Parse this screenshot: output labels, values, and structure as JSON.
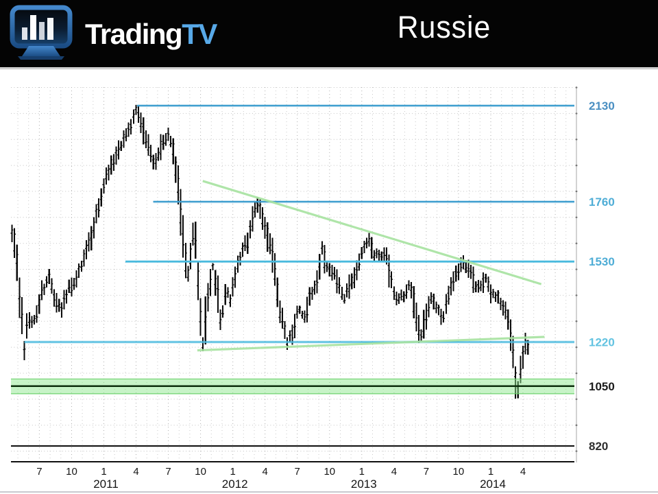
{
  "header": {
    "brand": {
      "part1": "Trading",
      "part2": "TV",
      "icon": "tv-bar-chart-icon",
      "frame_color": "#2d6db2",
      "bars_color": "#f2f2f2",
      "tv_text_color": "#58a9e8",
      "trading_text_color": "#ffffff",
      "bg_color": "#040404"
    },
    "title": "Russie"
  },
  "chart_data": {
    "type": "ohlc-bar",
    "title": "Russie",
    "bar_color": "#0a0a0a",
    "grid_color": "#c3c3c3",
    "x_axis": {
      "unit": "months (t=0 is Jan 2011)",
      "grid": "monthly-dotted",
      "ticks": [
        {
          "t": -6,
          "label": "7"
        },
        {
          "t": -3,
          "label": "10"
        },
        {
          "t": 0,
          "label": "1"
        },
        {
          "t": 3,
          "label": "4"
        },
        {
          "t": 6,
          "label": "7"
        },
        {
          "t": 9,
          "label": "10"
        },
        {
          "t": 12,
          "label": "1"
        },
        {
          "t": 15,
          "label": "4"
        },
        {
          "t": 18,
          "label": "7"
        },
        {
          "t": 21,
          "label": "10"
        },
        {
          "t": 24,
          "label": "1"
        },
        {
          "t": 27,
          "label": "4"
        },
        {
          "t": 30,
          "label": "7"
        },
        {
          "t": 33,
          "label": "10"
        },
        {
          "t": 36,
          "label": "1"
        },
        {
          "t": 39,
          "label": "4"
        }
      ],
      "years": [
        {
          "t": 0,
          "label": "2011"
        },
        {
          "t": 12,
          "label": "2012"
        },
        {
          "t": 24,
          "label": "2013"
        },
        {
          "t": 36,
          "label": "2014"
        }
      ]
    },
    "y_axis": {
      "grid_min": 800,
      "grid_max": 2200,
      "grid_step": 100,
      "labels": [
        {
          "price": 2130,
          "color": "#4a8fc2"
        },
        {
          "price": 1760,
          "color": "#4fadd6"
        },
        {
          "price": 1530,
          "color": "#4fadd6"
        },
        {
          "price": 1220,
          "color": "#63c3e1"
        },
        {
          "price": 1050,
          "color": "#1b1b1b"
        },
        {
          "price": 820,
          "color": "#2e2e2e"
        }
      ]
    },
    "levels": [
      {
        "price": 2130,
        "from_t": 3.1,
        "color": "#3e9ecf"
      },
      {
        "price": 1760,
        "from_t": 4.6,
        "color": "#3e9ecf"
      },
      {
        "price": 1530,
        "from_t": 2.0,
        "color": "#49bade"
      },
      {
        "price": 1220,
        "from_t": -7.4,
        "color": "#49bade"
      }
    ],
    "trendlines": [
      {
        "t1": 9.2,
        "p1": 1840,
        "t2": 40.7,
        "p2": 1443,
        "color": "#a7e3a0"
      },
      {
        "t1": 8.7,
        "p1": 1188,
        "t2": 41.0,
        "p2": 1240,
        "color": "#a7e3a0"
      }
    ],
    "zone": {
      "p_top": 1078,
      "p_bottom": 1021,
      "line_price": 1050,
      "fill": "#8fe88f",
      "edge": "#63cf63",
      "line_color": "#0d2e0d"
    },
    "baseline_price": 820,
    "series": {
      "name": "Russie index, weekly bars",
      "keypoints": [
        [
          -8.6,
          1650
        ],
        [
          -8.3,
          1600
        ],
        [
          -7.9,
          1430
        ],
        [
          -7.6,
          1290
        ],
        [
          -7.4,
          1205
        ],
        [
          -7.0,
          1320
        ],
        [
          -6.5,
          1300
        ],
        [
          -5.8,
          1400
        ],
        [
          -5.1,
          1480
        ],
        [
          -4.6,
          1390
        ],
        [
          -4.0,
          1340
        ],
        [
          -3.3,
          1420
        ],
        [
          -2.5,
          1470
        ],
        [
          -1.8,
          1540
        ],
        [
          -1.0,
          1650
        ],
        [
          -0.2,
          1790
        ],
        [
          0.5,
          1880
        ],
        [
          1.3,
          1950
        ],
        [
          2.2,
          2020
        ],
        [
          3.1,
          2120
        ],
        [
          3.6,
          2040
        ],
        [
          4.1,
          1980
        ],
        [
          4.7,
          1900
        ],
        [
          5.2,
          1960
        ],
        [
          5.6,
          2000
        ],
        [
          6.1,
          2015
        ],
        [
          6.5,
          1950
        ],
        [
          7.0,
          1800
        ],
        [
          7.6,
          1530
        ],
        [
          7.9,
          1480
        ],
        [
          8.4,
          1690
        ],
        [
          8.8,
          1450
        ],
        [
          9.2,
          1210
        ],
        [
          9.7,
          1390
        ],
        [
          10.1,
          1510
        ],
        [
          10.5,
          1440
        ],
        [
          10.9,
          1290
        ],
        [
          11.4,
          1420
        ],
        [
          11.8,
          1380
        ],
        [
          12.2,
          1480
        ],
        [
          12.8,
          1560
        ],
        [
          13.3,
          1600
        ],
        [
          13.8,
          1690
        ],
        [
          14.3,
          1755
        ],
        [
          14.8,
          1690
        ],
        [
          15.3,
          1620
        ],
        [
          15.9,
          1520
        ],
        [
          16.2,
          1400
        ],
        [
          16.6,
          1300
        ],
        [
          17.1,
          1215
        ],
        [
          17.6,
          1260
        ],
        [
          18.1,
          1340
        ],
        [
          18.7,
          1310
        ],
        [
          19.2,
          1390
        ],
        [
          19.8,
          1450
        ],
        [
          20.3,
          1580
        ],
        [
          20.8,
          1505
        ],
        [
          21.3,
          1490
        ],
        [
          22.0,
          1420
        ],
        [
          22.4,
          1380
        ],
        [
          23.0,
          1450
        ],
        [
          23.6,
          1520
        ],
        [
          24.1,
          1570
        ],
        [
          24.6,
          1620
        ],
        [
          25.1,
          1550
        ],
        [
          25.6,
          1560
        ],
        [
          26.2,
          1555
        ],
        [
          26.8,
          1440
        ],
        [
          27.3,
          1375
        ],
        [
          28.0,
          1410
        ],
        [
          28.5,
          1450
        ],
        [
          29.0,
          1320
        ],
        [
          29.6,
          1235
        ],
        [
          30.0,
          1330
        ],
        [
          30.5,
          1390
        ],
        [
          31.0,
          1350
        ],
        [
          31.5,
          1305
        ],
        [
          32.1,
          1400
        ],
        [
          32.6,
          1470
        ],
        [
          33.1,
          1510
        ],
        [
          33.6,
          1525
        ],
        [
          34.1,
          1480
        ],
        [
          34.6,
          1430
        ],
        [
          35.1,
          1440
        ],
        [
          35.6,
          1465
        ],
        [
          36.1,
          1415
        ],
        [
          36.6,
          1400
        ],
        [
          37.2,
          1355
        ],
        [
          37.7,
          1290
        ],
        [
          38.0,
          1220
        ],
        [
          38.3,
          1060
        ],
        [
          38.5,
          1030
        ],
        [
          38.8,
          1100
        ],
        [
          39.1,
          1190
        ],
        [
          39.3,
          1235
        ],
        [
          39.5,
          1195
        ]
      ],
      "spikes": [
        {
          "t": -7.4,
          "low": 1150
        },
        {
          "t": 3.1,
          "high": 2132
        },
        {
          "t": 9.2,
          "low": 1198
        },
        {
          "t": 14.3,
          "high": 1765
        },
        {
          "t": 17.1,
          "low": 1190
        },
        {
          "t": 24.6,
          "high": 1640
        },
        {
          "t": 29.6,
          "low": 1225
        },
        {
          "t": 33.6,
          "high": 1532
        },
        {
          "t": 38.5,
          "low": 1004
        }
      ]
    }
  }
}
